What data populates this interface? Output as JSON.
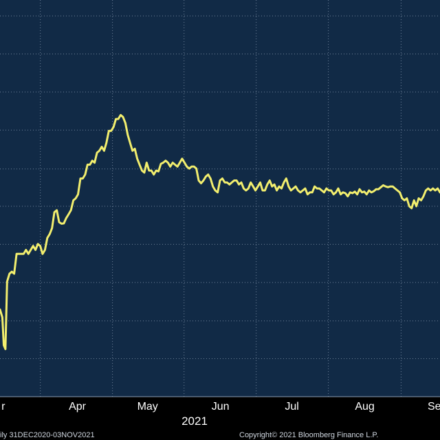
{
  "colors": {
    "background": "#000000",
    "plot_background": "#112a46",
    "grid": "#6f8299",
    "line": "#f2ee6e",
    "text": "#ffffff",
    "footer_text": "#cfd6df"
  },
  "footer": {
    "range_text": "ily 31DEC2020-03NOV2021",
    "copyright_text": "Copyright© 2021 Bloomberg Finance L.P."
  },
  "chart_data": {
    "type": "line",
    "title": "",
    "xlabel": "2021",
    "ylabel": "",
    "x_ticks": [
      {
        "label": "r",
        "day": 59.4
      },
      {
        "label": "Apr",
        "day": 90.7
      },
      {
        "label": "May",
        "day": 120.4
      },
      {
        "label": "Jun",
        "day": 151.2
      },
      {
        "label": "Jul",
        "day": 181.4
      },
      {
        "label": "Aug",
        "day": 212.2
      },
      {
        "label": "Sep",
        "day": 242.9
      }
    ],
    "x_range_days": [
      58,
      244
    ],
    "y_range": [
      0,
      100
    ],
    "y_gridlines": [
      9.6,
      19.1,
      28.8,
      38.4,
      48,
      57.4,
      67.2,
      76.8,
      86.4,
      96
    ],
    "grid": true,
    "legend": "none",
    "series": [
      {
        "values": [
          [
            58,
            22
          ],
          [
            59,
            20
          ],
          [
            59.6,
            13
          ],
          [
            60.3,
            12
          ],
          [
            61,
            29
          ],
          [
            62,
            31
          ],
          [
            63,
            31.5
          ],
          [
            64,
            31
          ],
          [
            65,
            36
          ],
          [
            66,
            36
          ],
          [
            67,
            36
          ],
          [
            68,
            36
          ],
          [
            69,
            37
          ],
          [
            70,
            36
          ],
          [
            71,
            37
          ],
          [
            72,
            38
          ],
          [
            73,
            37
          ],
          [
            74,
            38.5
          ],
          [
            75,
            38
          ],
          [
            76,
            36
          ],
          [
            77,
            37
          ],
          [
            78,
            40
          ],
          [
            79,
            41
          ],
          [
            80,
            42.5
          ],
          [
            81,
            46.5
          ],
          [
            82,
            47
          ],
          [
            83,
            44
          ],
          [
            84,
            43.6
          ],
          [
            85,
            43.7
          ],
          [
            86,
            45
          ],
          [
            87,
            46
          ],
          [
            88,
            47
          ],
          [
            89,
            49.5
          ],
          [
            90,
            50
          ],
          [
            91,
            51
          ],
          [
            92,
            55
          ],
          [
            93,
            55
          ],
          [
            94,
            56
          ],
          [
            95,
            58.5
          ],
          [
            96,
            58.5
          ],
          [
            97,
            59.5
          ],
          [
            98,
            59
          ],
          [
            99,
            61.5
          ],
          [
            100,
            62
          ],
          [
            101,
            63
          ],
          [
            102,
            62
          ],
          [
            103,
            64
          ],
          [
            104,
            67
          ],
          [
            105,
            67
          ],
          [
            106,
            68
          ],
          [
            107,
            70
          ],
          [
            108,
            70
          ],
          [
            109,
            71
          ],
          [
            110,
            70.5
          ],
          [
            111,
            69
          ],
          [
            112,
            66
          ],
          [
            113,
            64
          ],
          [
            114,
            62
          ],
          [
            115,
            62.5
          ],
          [
            116,
            60
          ],
          [
            117,
            58.5
          ],
          [
            118,
            57
          ],
          [
            119,
            56.5
          ],
          [
            120,
            59
          ],
          [
            121,
            57
          ],
          [
            122,
            57
          ],
          [
            123,
            56
          ],
          [
            124,
            57
          ],
          [
            125,
            56.8
          ],
          [
            126,
            58.7
          ],
          [
            127,
            59
          ],
          [
            128,
            59.5
          ],
          [
            129,
            59
          ],
          [
            130,
            58
          ],
          [
            131,
            59
          ],
          [
            132,
            58.5
          ],
          [
            133,
            58
          ],
          [
            134,
            59
          ],
          [
            135,
            60
          ],
          [
            136,
            59
          ],
          [
            137,
            58
          ],
          [
            138,
            57.5
          ],
          [
            139,
            58
          ],
          [
            140,
            58
          ],
          [
            141,
            57.5
          ],
          [
            142,
            54.5
          ],
          [
            143,
            53.8
          ],
          [
            144,
            54.5
          ],
          [
            145,
            55.5
          ],
          [
            146,
            56
          ],
          [
            147,
            55
          ],
          [
            148,
            53
          ],
          [
            149,
            52
          ],
          [
            150,
            51.5
          ],
          [
            151,
            54.5
          ],
          [
            152,
            55
          ],
          [
            153,
            54
          ],
          [
            154,
            54
          ],
          [
            155,
            53.5
          ],
          [
            156,
            54
          ],
          [
            157,
            54.5
          ],
          [
            158,
            54.5
          ],
          [
            159,
            53.5
          ],
          [
            160,
            54
          ],
          [
            161,
            52.5
          ],
          [
            162,
            52
          ],
          [
            163,
            52.5
          ],
          [
            164,
            54
          ],
          [
            165,
            53
          ],
          [
            166,
            52
          ],
          [
            167,
            53
          ],
          [
            168,
            54
          ],
          [
            169,
            52
          ],
          [
            170,
            52
          ],
          [
            171,
            53.5
          ],
          [
            172,
            54.5
          ],
          [
            173,
            53
          ],
          [
            174,
            53.5
          ],
          [
            175,
            52
          ],
          [
            176,
            53
          ],
          [
            177,
            52.5
          ],
          [
            178,
            54
          ],
          [
            179,
            55
          ],
          [
            180,
            53
          ],
          [
            181,
            52
          ],
          [
            182,
            52.5
          ],
          [
            183,
            53
          ],
          [
            184,
            52
          ],
          [
            185,
            51.5
          ],
          [
            186,
            52
          ],
          [
            187,
            52.5
          ],
          [
            188,
            51
          ],
          [
            189,
            51.5
          ],
          [
            190,
            51.5
          ],
          [
            191,
            53
          ],
          [
            192,
            52.5
          ],
          [
            193,
            52.5
          ],
          [
            194,
            52
          ],
          [
            195,
            51.5
          ],
          [
            196,
            52.5
          ],
          [
            197,
            52
          ],
          [
            198,
            52
          ],
          [
            199,
            51
          ],
          [
            200,
            51.5
          ],
          [
            201,
            52.5
          ],
          [
            202,
            51
          ],
          [
            203,
            51.5
          ],
          [
            204,
            51.3
          ],
          [
            205,
            50.5
          ],
          [
            206,
            51.5
          ],
          [
            207,
            51.3
          ],
          [
            208,
            51.7
          ],
          [
            209,
            51
          ],
          [
            210,
            52.3
          ],
          [
            211,
            51.5
          ],
          [
            212,
            51.7
          ],
          [
            213,
            51
          ],
          [
            214,
            52
          ],
          [
            215,
            51.5
          ],
          [
            216,
            51.8
          ],
          [
            217,
            52.3
          ],
          [
            218,
            52.3
          ],
          [
            219,
            52.8
          ],
          [
            220,
            53.3
          ],
          [
            221,
            53
          ],
          [
            222,
            52.8
          ],
          [
            223,
            53
          ],
          [
            224,
            53
          ],
          [
            225,
            52.5
          ],
          [
            226,
            52
          ],
          [
            227,
            51.5
          ],
          [
            228,
            50
          ],
          [
            229,
            49.5
          ],
          [
            230,
            50
          ],
          [
            231,
            48
          ],
          [
            232,
            47.5
          ],
          [
            233,
            49.5
          ],
          [
            234,
            48
          ],
          [
            235,
            50
          ],
          [
            236,
            49.5
          ],
          [
            237,
            50.5
          ],
          [
            238,
            52
          ],
          [
            239,
            52.5
          ],
          [
            240,
            52
          ],
          [
            241,
            52.5
          ],
          [
            242,
            52
          ],
          [
            243,
            52.5
          ],
          [
            244,
            51.5
          ]
        ]
      }
    ]
  }
}
